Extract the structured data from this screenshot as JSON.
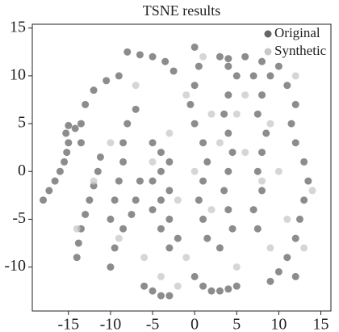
{
  "chart_data": {
    "type": "scatter",
    "title": "TSNE results",
    "xlim": [
      -19.3,
      16.2
    ],
    "ylim": [
      -14.6,
      15.4
    ],
    "xticks": [
      -15,
      -10,
      -5,
      0,
      5,
      10,
      15
    ],
    "yticks": [
      -10,
      -5,
      0,
      5,
      10,
      15
    ],
    "legend": "upper right",
    "series": [
      {
        "name": "Original",
        "color": "#666666",
        "x": [
          -18,
          -17.3,
          -16.6,
          -16,
          -15.5,
          -15.2,
          -15,
          -15.3,
          -15,
          -14.2,
          -14,
          -13.8,
          -13.5,
          -13,
          -12.5,
          -12,
          -11.5,
          -11.2,
          -13.5,
          -13.5,
          -13,
          -12,
          -10.5,
          -9,
          -8,
          -6.5,
          -5,
          -3.5,
          -2.5,
          -10,
          -9.5,
          -9,
          -8.5,
          -8.5,
          -8,
          -7,
          -10,
          -9.5,
          -8.5,
          -7.5,
          -7,
          -6.5,
          -5,
          -4,
          -3,
          -4,
          -5,
          -3,
          -4,
          -5,
          -3,
          -4,
          -2,
          -3,
          -6,
          -5,
          -4,
          -3,
          0,
          1,
          2,
          3,
          4,
          5,
          0,
          0.5,
          0,
          -0.5,
          0,
          1,
          1.5,
          1,
          0.5,
          1,
          1.5,
          3,
          4,
          5,
          4,
          3.5,
          4,
          4.5,
          4,
          3.5,
          4,
          4.5,
          3,
          7,
          8,
          7.5,
          8.5,
          8,
          7.5,
          8,
          7,
          7.5,
          10,
          11,
          12,
          11.5,
          12,
          13,
          13.5,
          13,
          12.5,
          12,
          11,
          10,
          9,
          12,
          4,
          6,
          8,
          9
        ],
        "y": [
          -3,
          -2,
          -1,
          0,
          1,
          2,
          3,
          4,
          4.8,
          4.5,
          -9,
          -7.5,
          -6,
          -4.5,
          -3,
          -1.5,
          0,
          1.5,
          3,
          5,
          7,
          8.5,
          9.5,
          10,
          12.5,
          12.2,
          12,
          11.5,
          10.5,
          -5,
          -3,
          -1,
          1,
          3,
          5,
          6.5,
          -10,
          -8,
          -6,
          -4.5,
          -3,
          -1,
          3,
          2,
          1,
          0,
          -1,
          -2,
          -3,
          -4,
          -5,
          -6,
          -7,
          -8,
          -12,
          -12.5,
          -13,
          -13,
          -11,
          -12,
          -12.5,
          -12.5,
          -12.3,
          -12,
          13,
          11,
          9,
          7,
          5,
          3,
          1,
          -1,
          -3,
          -5,
          -7,
          12,
          11,
          10,
          8,
          6,
          4,
          2,
          0,
          -2,
          -4,
          -6,
          -8,
          10,
          8,
          6,
          4,
          2,
          0,
          -2,
          -4,
          -6,
          11,
          9,
          7,
          5,
          3,
          1,
          -1,
          -3,
          -5,
          -7,
          -9,
          -10.5,
          -11.5,
          -11,
          11.8,
          12,
          11.5,
          10
        ]
      },
      {
        "name": "Synthetic",
        "color": "#c8c8c8",
        "x": [
          -12,
          -10,
          -9,
          -6,
          -5,
          -2,
          -3,
          -1,
          1,
          2,
          0,
          2,
          -1,
          5,
          6,
          6,
          9,
          10,
          11,
          13,
          14,
          9,
          -7,
          -14,
          -4,
          3,
          5,
          8,
          12,
          -2
        ],
        "y": [
          -1,
          3,
          -7,
          -9,
          1,
          -3,
          4,
          8,
          12,
          6,
          0,
          -4,
          -9,
          -10,
          2,
          8,
          5,
          0,
          -5,
          -8,
          -2,
          -8,
          9,
          -6,
          -11,
          3,
          6,
          -1,
          10,
          -12
        ]
      }
    ]
  }
}
